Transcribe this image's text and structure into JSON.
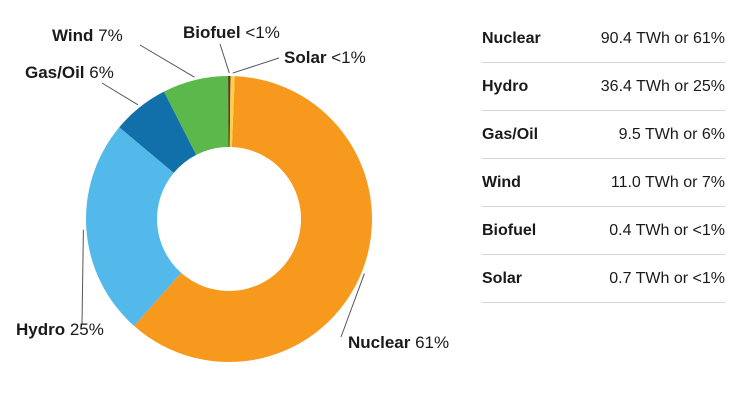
{
  "chart_data": {
    "type": "pie",
    "donut": true,
    "unit": "TWh",
    "slices": [
      {
        "name": "Nuclear",
        "value": 90.4,
        "share": "61%",
        "display": "90.4 TWh or 61%",
        "color": "#f7991c"
      },
      {
        "name": "Hydro",
        "value": 36.4,
        "share": "25%",
        "display": "36.4 TWh or 25%",
        "color": "#52b9ea"
      },
      {
        "name": "Gas/Oil",
        "value": 9.5,
        "share": "6%",
        "display": "9.5 TWh or 6%",
        "color": "#1170aa"
      },
      {
        "name": "Wind",
        "value": 11.0,
        "share": "7%",
        "display": "11.0 TWh or 7%",
        "color": "#5ab94a"
      },
      {
        "name": "Biofuel",
        "value": 0.4,
        "share": "<1%",
        "display": "0.4 TWh or <1%",
        "color": "#5b3a1e"
      },
      {
        "name": "Solar",
        "value": 0.7,
        "share": "<1%",
        "display": "0.7 TWh or <1%",
        "color": "#fcd04b"
      }
    ],
    "legend": "right-table"
  }
}
